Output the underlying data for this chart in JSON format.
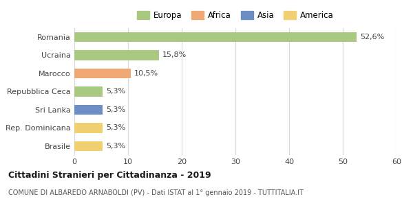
{
  "categories": [
    "Romania",
    "Ucraina",
    "Marocco",
    "Repubblica Ceca",
    "Sri Lanka",
    "Rep. Dominicana",
    "Brasile"
  ],
  "values": [
    52.6,
    15.8,
    10.5,
    5.3,
    5.3,
    5.3,
    5.3
  ],
  "labels": [
    "52,6%",
    "15,8%",
    "10,5%",
    "5,3%",
    "5,3%",
    "5,3%",
    "5,3%"
  ],
  "bar_colors": [
    "#a8c97f",
    "#a8c97f",
    "#f0a875",
    "#a8c97f",
    "#6b8fc4",
    "#f0d070",
    "#f0d070"
  ],
  "legend_entries": [
    {
      "label": "Europa",
      "color": "#a8c97f"
    },
    {
      "label": "Africa",
      "color": "#f0a875"
    },
    {
      "label": "Asia",
      "color": "#6b8fc4"
    },
    {
      "label": "America",
      "color": "#f0d070"
    }
  ],
  "xlim": [
    0,
    60
  ],
  "xticks": [
    0,
    10,
    20,
    30,
    40,
    50,
    60
  ],
  "title": "Cittadini Stranieri per Cittadinanza - 2019",
  "subtitle": "COMUNE DI ALBAREDO ARNABOLDI (PV) - Dati ISTAT al 1° gennaio 2019 - TUTTITALIA.IT",
  "background_color": "#ffffff",
  "grid_color": "#d8d8d8"
}
